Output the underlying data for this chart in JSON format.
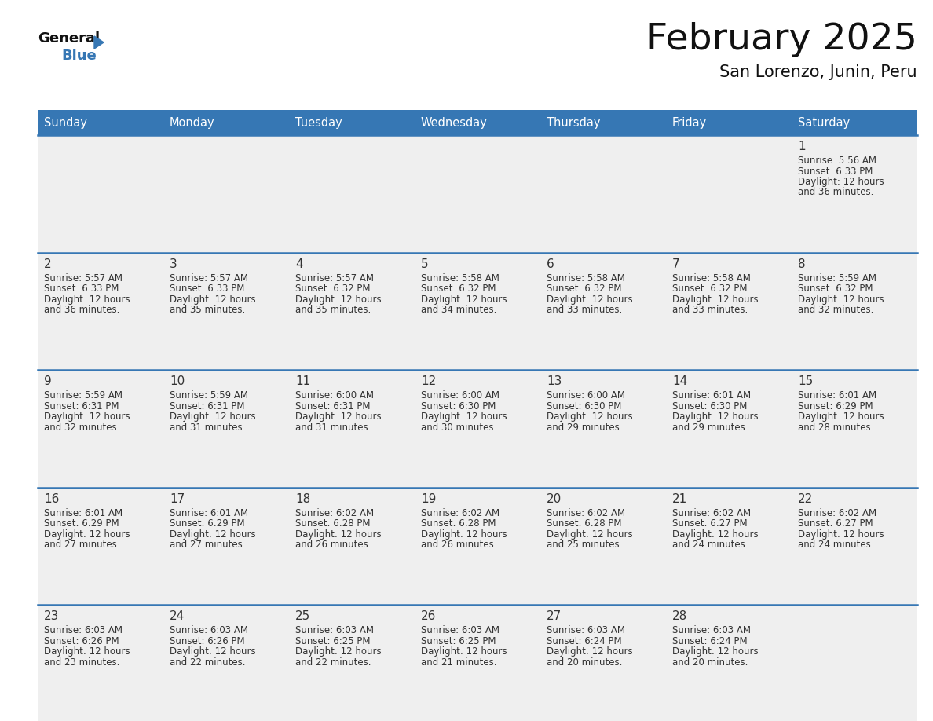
{
  "title": "February 2025",
  "subtitle": "San Lorenzo, Junin, Peru",
  "days_of_week": [
    "Sunday",
    "Monday",
    "Tuesday",
    "Wednesday",
    "Thursday",
    "Friday",
    "Saturday"
  ],
  "header_bg_color": "#3677B4",
  "header_text_color": "#FFFFFF",
  "cell_bg_color": "#EFEFEF",
  "separator_color": "#3677B4",
  "text_color": "#333333",
  "title_color": "#111111",
  "logo_general_color": "#111111",
  "logo_blue_color": "#3677B4",
  "calendar_data": [
    {
      "day": 1,
      "col": 6,
      "row": 0,
      "sunrise": "5:56 AM",
      "sunset": "6:33 PM",
      "daylight_min": 36
    },
    {
      "day": 2,
      "col": 0,
      "row": 1,
      "sunrise": "5:57 AM",
      "sunset": "6:33 PM",
      "daylight_min": 36
    },
    {
      "day": 3,
      "col": 1,
      "row": 1,
      "sunrise": "5:57 AM",
      "sunset": "6:33 PM",
      "daylight_min": 35
    },
    {
      "day": 4,
      "col": 2,
      "row": 1,
      "sunrise": "5:57 AM",
      "sunset": "6:32 PM",
      "daylight_min": 35
    },
    {
      "day": 5,
      "col": 3,
      "row": 1,
      "sunrise": "5:58 AM",
      "sunset": "6:32 PM",
      "daylight_min": 34
    },
    {
      "day": 6,
      "col": 4,
      "row": 1,
      "sunrise": "5:58 AM",
      "sunset": "6:32 PM",
      "daylight_min": 33
    },
    {
      "day": 7,
      "col": 5,
      "row": 1,
      "sunrise": "5:58 AM",
      "sunset": "6:32 PM",
      "daylight_min": 33
    },
    {
      "day": 8,
      "col": 6,
      "row": 1,
      "sunrise": "5:59 AM",
      "sunset": "6:32 PM",
      "daylight_min": 32
    },
    {
      "day": 9,
      "col": 0,
      "row": 2,
      "sunrise": "5:59 AM",
      "sunset": "6:31 PM",
      "daylight_min": 32
    },
    {
      "day": 10,
      "col": 1,
      "row": 2,
      "sunrise": "5:59 AM",
      "sunset": "6:31 PM",
      "daylight_min": 31
    },
    {
      "day": 11,
      "col": 2,
      "row": 2,
      "sunrise": "6:00 AM",
      "sunset": "6:31 PM",
      "daylight_min": 31
    },
    {
      "day": 12,
      "col": 3,
      "row": 2,
      "sunrise": "6:00 AM",
      "sunset": "6:30 PM",
      "daylight_min": 30
    },
    {
      "day": 13,
      "col": 4,
      "row": 2,
      "sunrise": "6:00 AM",
      "sunset": "6:30 PM",
      "daylight_min": 29
    },
    {
      "day": 14,
      "col": 5,
      "row": 2,
      "sunrise": "6:01 AM",
      "sunset": "6:30 PM",
      "daylight_min": 29
    },
    {
      "day": 15,
      "col": 6,
      "row": 2,
      "sunrise": "6:01 AM",
      "sunset": "6:29 PM",
      "daylight_min": 28
    },
    {
      "day": 16,
      "col": 0,
      "row": 3,
      "sunrise": "6:01 AM",
      "sunset": "6:29 PM",
      "daylight_min": 27
    },
    {
      "day": 17,
      "col": 1,
      "row": 3,
      "sunrise": "6:01 AM",
      "sunset": "6:29 PM",
      "daylight_min": 27
    },
    {
      "day": 18,
      "col": 2,
      "row": 3,
      "sunrise": "6:02 AM",
      "sunset": "6:28 PM",
      "daylight_min": 26
    },
    {
      "day": 19,
      "col": 3,
      "row": 3,
      "sunrise": "6:02 AM",
      "sunset": "6:28 PM",
      "daylight_min": 26
    },
    {
      "day": 20,
      "col": 4,
      "row": 3,
      "sunrise": "6:02 AM",
      "sunset": "6:28 PM",
      "daylight_min": 25
    },
    {
      "day": 21,
      "col": 5,
      "row": 3,
      "sunrise": "6:02 AM",
      "sunset": "6:27 PM",
      "daylight_min": 24
    },
    {
      "day": 22,
      "col": 6,
      "row": 3,
      "sunrise": "6:02 AM",
      "sunset": "6:27 PM",
      "daylight_min": 24
    },
    {
      "day": 23,
      "col": 0,
      "row": 4,
      "sunrise": "6:03 AM",
      "sunset": "6:26 PM",
      "daylight_min": 23
    },
    {
      "day": 24,
      "col": 1,
      "row": 4,
      "sunrise": "6:03 AM",
      "sunset": "6:26 PM",
      "daylight_min": 22
    },
    {
      "day": 25,
      "col": 2,
      "row": 4,
      "sunrise": "6:03 AM",
      "sunset": "6:25 PM",
      "daylight_min": 22
    },
    {
      "day": 26,
      "col": 3,
      "row": 4,
      "sunrise": "6:03 AM",
      "sunset": "6:25 PM",
      "daylight_min": 21
    },
    {
      "day": 27,
      "col": 4,
      "row": 4,
      "sunrise": "6:03 AM",
      "sunset": "6:24 PM",
      "daylight_min": 20
    },
    {
      "day": 28,
      "col": 5,
      "row": 4,
      "sunrise": "6:03 AM",
      "sunset": "6:24 PM",
      "daylight_min": 20
    }
  ]
}
